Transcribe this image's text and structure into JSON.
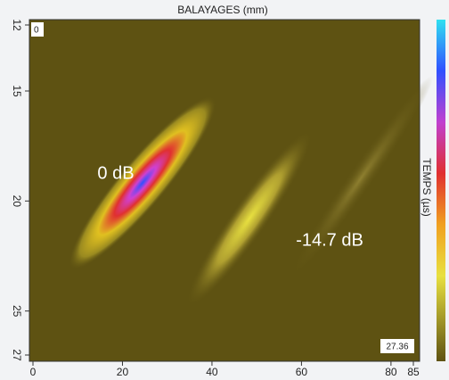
{
  "chart_data": {
    "type": "heatmap",
    "title": "BALAYAGES (mm)",
    "y_label": "TEMPS (µs)",
    "xlim": [
      0,
      85
    ],
    "xticks": [
      0,
      20,
      40,
      60,
      80,
      85
    ],
    "ylim": [
      12,
      27
    ],
    "yticks": [
      12,
      15,
      20,
      25,
      27
    ],
    "y_reversed": true,
    "annotations": [
      "0 dB",
      "-14.7 dB"
    ],
    "corner_labels": [
      "0",
      "27.36"
    ]
  }
}
